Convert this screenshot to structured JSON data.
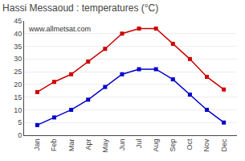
{
  "chart_data": {
    "type": "line",
    "title": "Hassi Messaoud : temperatures (°C)",
    "categories": [
      "Jan",
      "Feb",
      "Mar",
      "Apr",
      "May",
      "Jun",
      "Jul",
      "Aug",
      "Sep",
      "Oct",
      "Nov",
      "Dec"
    ],
    "series": [
      {
        "color": "#cc0000",
        "marker": "square",
        "values": [
          17,
          21,
          24,
          29,
          34,
          40,
          42,
          42,
          36,
          30,
          23,
          18
        ]
      },
      {
        "color": "#0000cc",
        "marker": "square",
        "values": [
          4,
          7,
          10,
          14,
          19,
          24,
          26,
          26,
          22,
          16,
          10,
          5
        ]
      }
    ],
    "ylim": [
      0,
      45
    ],
    "yticks": [
      0,
      5,
      10,
      15,
      20,
      25,
      30,
      35,
      40,
      45
    ],
    "grid": true,
    "annotations": [
      "www.allmetsat.com"
    ]
  }
}
